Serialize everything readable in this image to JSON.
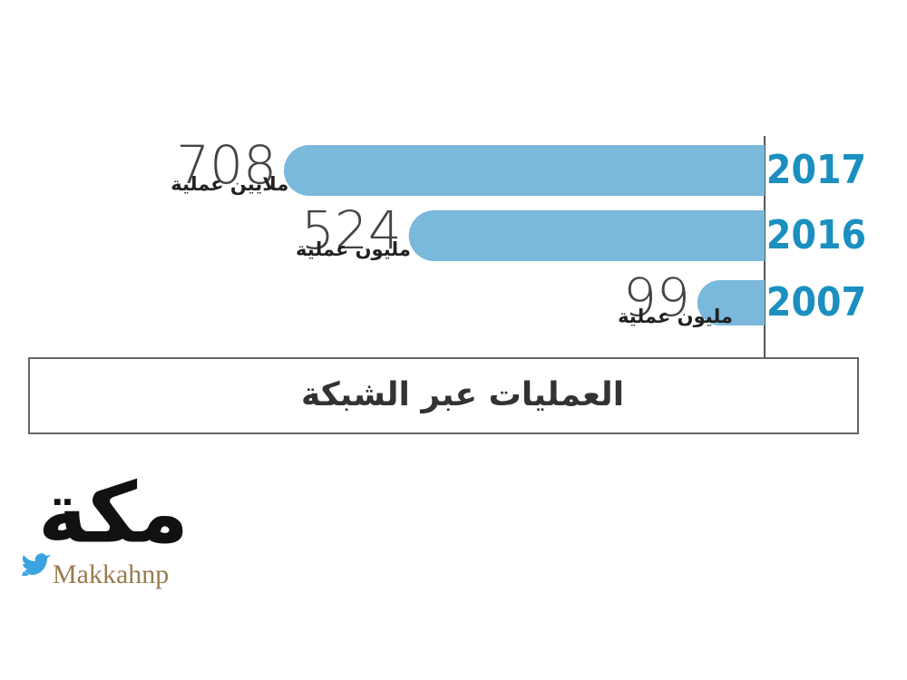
{
  "chart_data": {
    "type": "bar",
    "orientation": "horizontal",
    "title": "العمليات عبر الشبكة",
    "categories": [
      "2017",
      "2016",
      "2007"
    ],
    "values": [
      708,
      524,
      99
    ],
    "value_units": [
      "ملايين عملية",
      "مليون عملية",
      "مليون عملية"
    ],
    "color": "#7ab8dc",
    "category_color": "#1a8fc0"
  },
  "logo": {
    "name": "مكة",
    "handle": "Makkahnp"
  }
}
